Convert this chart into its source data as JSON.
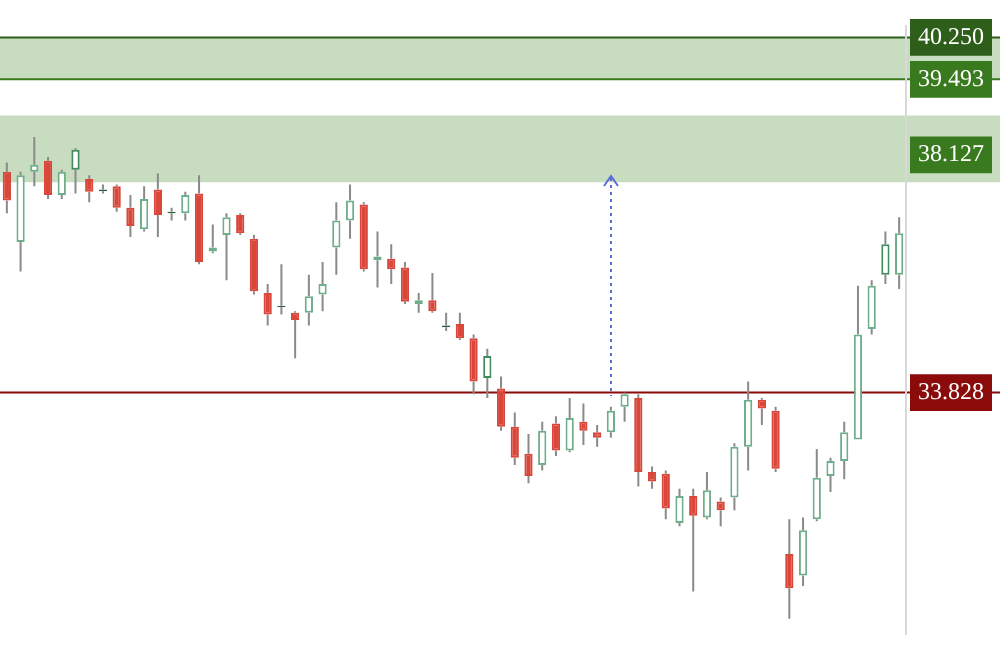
{
  "chart_data": {
    "type": "candlestick",
    "categories": [
      null,
      null,
      null,
      null,
      null,
      null,
      null,
      null,
      null,
      null,
      null,
      null,
      null,
      null,
      null,
      null,
      null,
      null,
      null,
      null,
      null,
      null,
      null,
      null,
      null,
      null,
      null,
      null,
      null,
      null,
      null,
      null,
      null,
      null,
      null,
      null,
      null,
      null,
      null,
      null,
      null,
      null,
      null,
      null,
      null,
      null,
      null,
      null,
      null,
      null,
      null,
      null,
      null,
      null,
      null,
      null,
      null,
      null,
      null,
      null,
      null,
      null,
      null,
      null,
      null,
      null
    ],
    "ohlc": [
      [
        37.82,
        37.99,
        37.07,
        37.3
      ],
      [
        36.55,
        37.82,
        36.02,
        37.76
      ],
      [
        37.82,
        38.45,
        37.56,
        37.95
      ],
      [
        38.02,
        38.09,
        37.33,
        37.4
      ],
      [
        37.4,
        37.86,
        37.33,
        37.82
      ],
      [
        37.86,
        38.25,
        37.43,
        38.22
      ],
      [
        37.69,
        37.76,
        37.27,
        37.46
      ],
      [
        37.5,
        37.59,
        37.43,
        37.47
      ],
      [
        37.56,
        37.59,
        37.1,
        37.17
      ],
      [
        37.17,
        37.4,
        36.64,
        36.84
      ],
      [
        36.78,
        37.56,
        36.74,
        37.33
      ],
      [
        37.5,
        37.79,
        36.64,
        37.04
      ],
      [
        37.1,
        37.17,
        36.94,
        37.07
      ],
      [
        37.07,
        37.46,
        36.94,
        37.4
      ],
      [
        37.43,
        37.76,
        36.15,
        36.19
      ],
      [
        36.38,
        36.87,
        36.35,
        36.45
      ],
      [
        36.68,
        37.07,
        35.86,
        37.0
      ],
      [
        37.04,
        37.07,
        36.68,
        36.71
      ],
      [
        36.61,
        36.68,
        35.6,
        35.66
      ],
      [
        35.63,
        35.79,
        35.04,
        35.24
      ],
      [
        35.4,
        36.15,
        35.24,
        35.37
      ],
      [
        35.27,
        35.3,
        34.45,
        35.14
      ],
      [
        35.27,
        35.96,
        35.04,
        35.57
      ],
      [
        35.6,
        36.19,
        35.3,
        35.79
      ],
      [
        36.45,
        37.27,
        35.96,
        36.94
      ],
      [
        36.94,
        37.59,
        36.61,
        37.3
      ],
      [
        37.23,
        37.27,
        36.02,
        36.06
      ],
      [
        36.22,
        36.74,
        35.73,
        36.29
      ],
      [
        36.25,
        36.51,
        35.79,
        36.06
      ],
      [
        36.09,
        36.19,
        35.43,
        35.47
      ],
      [
        35.43,
        35.63,
        35.27,
        35.5
      ],
      [
        35.5,
        35.99,
        35.27,
        35.3
      ],
      [
        35.04,
        35.27,
        34.94,
        35.01
      ],
      [
        35.07,
        35.27,
        34.78,
        34.81
      ],
      [
        34.81,
        34.88,
        33.8,
        34.03
      ],
      [
        34.09,
        34.62,
        33.73,
        34.49
      ],
      [
        33.9,
        34.12,
        33.14,
        33.21
      ],
      [
        33.21,
        33.47,
        32.52,
        32.65
      ],
      [
        32.72,
        33.08,
        32.19,
        32.32
      ],
      [
        32.52,
        33.3,
        32.42,
        33.14
      ],
      [
        33.27,
        33.4,
        32.68,
        32.78
      ],
      [
        32.78,
        33.73,
        32.75,
        33.37
      ],
      [
        33.3,
        33.63,
        32.88,
        33.14
      ],
      [
        33.11,
        33.24,
        32.85,
        33.01
      ],
      [
        33.11,
        33.57,
        33.01,
        33.5
      ],
      [
        33.57,
        33.83,
        33.3,
        33.8
      ],
      [
        33.73,
        33.8,
        32.13,
        32.39
      ],
      [
        32.39,
        32.49,
        32.09,
        32.22
      ],
      [
        32.36,
        32.42,
        31.54,
        31.73
      ],
      [
        31.47,
        32.09,
        31.41,
        31.96
      ],
      [
        31.96,
        32.09,
        30.23,
        31.6
      ],
      [
        31.57,
        32.39,
        31.54,
        32.06
      ],
      [
        31.86,
        31.93,
        31.41,
        31.7
      ],
      [
        31.93,
        32.91,
        31.7,
        32.85
      ],
      [
        32.85,
        34.03,
        32.42,
        33.7
      ],
      [
        33.7,
        33.73,
        33.24,
        33.54
      ],
      [
        33.5,
        33.57,
        32.39,
        32.45
      ],
      [
        30.91,
        31.54,
        29.74,
        30.29
      ],
      [
        30.52,
        31.57,
        30.33,
        31.34
      ],
      [
        31.54,
        32.81,
        31.5,
        32.29
      ],
      [
        32.32,
        32.65,
        32.03,
        32.59
      ],
      [
        32.59,
        33.3,
        32.26,
        33.11
      ],
      [
        32.98,
        35.76,
        32.98,
        34.88
      ],
      [
        34.98,
        35.86,
        34.88,
        35.76
      ],
      [
        35.96,
        36.74,
        35.79,
        36.51
      ],
      [
        35.96,
        37.0,
        35.7,
        36.71
      ]
    ],
    "colors": [
      "#d9473a",
      "#6fae8a",
      "#6fae8a",
      "#d9473a",
      "#6fae8a",
      "#3f8a5e",
      "#d9473a",
      "#2f5f3f",
      "#d9473a",
      "#d9473a",
      "#6fae8a",
      "#d9473a",
      "#2f5f3f",
      "#6fae8a",
      "#d9473a",
      "#6fae8a",
      "#6fae8a",
      "#d9473a",
      "#d9473a",
      "#d9473a",
      "#2f5f3f",
      "#d9473a",
      "#6fae8a",
      "#6fae8a",
      "#6fae8a",
      "#6fae8a",
      "#d9473a",
      "#6fae8a",
      "#d9473a",
      "#d9473a",
      "#6fae8a",
      "#d9473a",
      "#2f5f3f",
      "#d9473a",
      "#d9473a",
      "#3f8a5e",
      "#d9473a",
      "#d9473a",
      "#d9473a",
      "#6fae8a",
      "#d9473a",
      "#6fae8a",
      "#d9473a",
      "#d9473a",
      "#6fae8a",
      "#6fae8a",
      "#d9473a",
      "#d9473a",
      "#d9473a",
      "#6fae8a",
      "#d9473a",
      "#6fae8a",
      "#d9473a",
      "#6fae8a",
      "#6fae8a",
      "#d9473a",
      "#d9473a",
      "#d9473a",
      "#6fae8a",
      "#6fae8a",
      "#6fae8a",
      "#6fae8a",
      "#6fae8a",
      "#6fae8a",
      "#3f8a5e",
      "#6fae8a"
    ],
    "ylim": [
      29.47,
      40.45
    ],
    "yticks": [
      33.828,
      38.127,
      39.493,
      {
        "value": 40.25,
        "label": "40.250"
      }
    ],
    "tick_labels": "y",
    "grid": false,
    "legend": false,
    "bands": [
      {
        "axis": "y",
        "from": 39.493,
        "to": 40.25,
        "color": "#c8dcc0"
      },
      {
        "axis": "y",
        "from": 37.63,
        "to": 38.84,
        "color": "#c8dcc0"
      }
    ],
    "ref_lines": [
      {
        "axis": "y",
        "value": 40.25,
        "color": "#2d5e1a"
      },
      {
        "axis": "y",
        "value": 39.493,
        "color": "#3a7a1e"
      },
      {
        "axis": "y",
        "value": 33.828,
        "color": "#8b0a0a"
      }
    ]
  }
}
